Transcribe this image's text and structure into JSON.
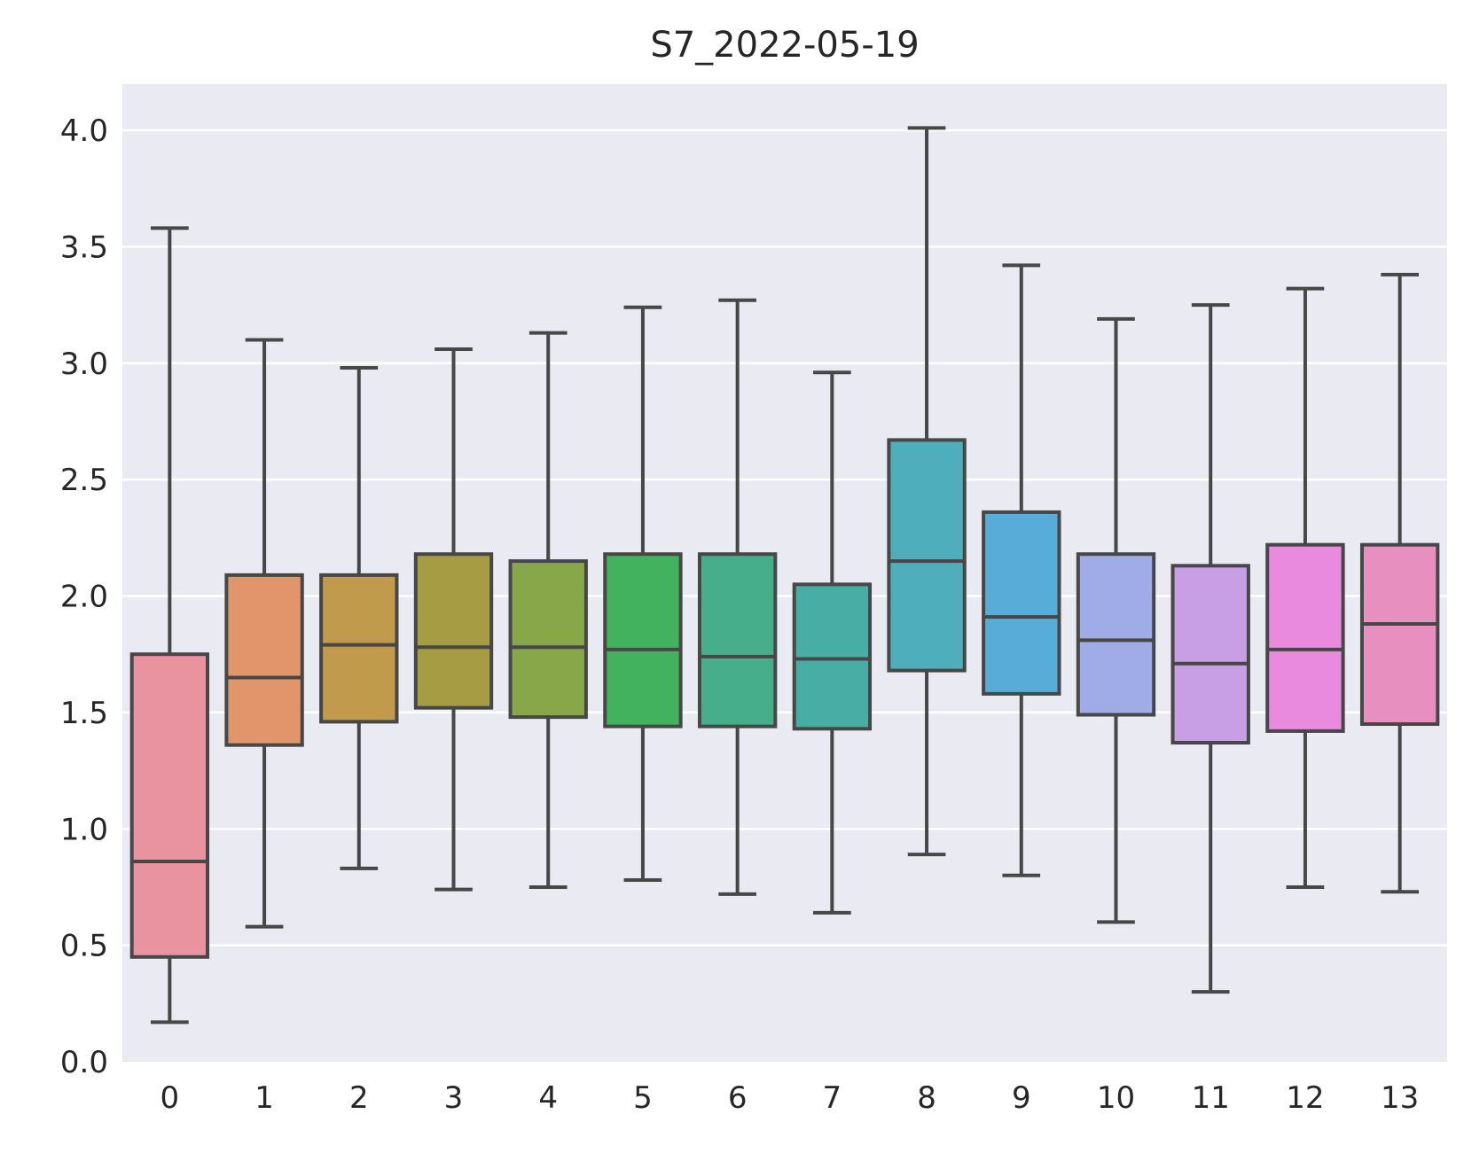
{
  "chart_data": {
    "type": "boxplot",
    "title": "S7_2022-05-19",
    "xlabel": "",
    "ylabel": "",
    "ylim": [
      0.0,
      4.2
    ],
    "yticks": [
      "0.0",
      "0.5",
      "1.0",
      "1.5",
      "2.0",
      "2.5",
      "3.0",
      "3.5",
      "4.0"
    ],
    "grid": true,
    "categories": [
      "0",
      "1",
      "2",
      "3",
      "4",
      "5",
      "6",
      "7",
      "8",
      "9",
      "10",
      "11",
      "12",
      "13"
    ],
    "boxes": [
      {
        "category": "0",
        "whislo": 0.17,
        "q1": 0.45,
        "med": 0.86,
        "q3": 1.75,
        "whishi": 3.58,
        "color": "#e8939f"
      },
      {
        "category": "1",
        "whislo": 0.58,
        "q1": 1.36,
        "med": 1.65,
        "q3": 2.09,
        "whishi": 3.1,
        "color": "#e2946b"
      },
      {
        "category": "2",
        "whislo": 0.83,
        "q1": 1.46,
        "med": 1.79,
        "q3": 2.09,
        "whishi": 2.98,
        "color": "#c19b4b"
      },
      {
        "category": "3",
        "whislo": 0.74,
        "q1": 1.52,
        "med": 1.78,
        "q3": 2.18,
        "whishi": 3.06,
        "color": "#a59c43"
      },
      {
        "category": "4",
        "whislo": 0.75,
        "q1": 1.48,
        "med": 1.78,
        "q3": 2.15,
        "whishi": 3.13,
        "color": "#88a748"
      },
      {
        "category": "5",
        "whislo": 0.78,
        "q1": 1.44,
        "med": 1.77,
        "q3": 2.18,
        "whishi": 3.24,
        "color": "#43b25e"
      },
      {
        "category": "6",
        "whislo": 0.72,
        "q1": 1.44,
        "med": 1.74,
        "q3": 2.18,
        "whishi": 3.27,
        "color": "#46ae8a"
      },
      {
        "category": "7",
        "whislo": 0.64,
        "q1": 1.43,
        "med": 1.73,
        "q3": 2.05,
        "whishi": 2.96,
        "color": "#48ada5"
      },
      {
        "category": "8",
        "whislo": 0.89,
        "q1": 1.68,
        "med": 2.15,
        "q3": 2.67,
        "whishi": 4.01,
        "color": "#4eaebc"
      },
      {
        "category": "9",
        "whislo": 0.8,
        "q1": 1.58,
        "med": 1.91,
        "q3": 2.36,
        "whishi": 3.42,
        "color": "#58acd8"
      },
      {
        "category": "10",
        "whislo": 0.6,
        "q1": 1.49,
        "med": 1.81,
        "q3": 2.18,
        "whishi": 3.19,
        "color": "#a0ace8"
      },
      {
        "category": "11",
        "whislo": 0.3,
        "q1": 1.37,
        "med": 1.71,
        "q3": 2.13,
        "whishi": 3.25,
        "color": "#c89ee4"
      },
      {
        "category": "12",
        "whislo": 0.75,
        "q1": 1.42,
        "med": 1.77,
        "q3": 2.22,
        "whishi": 3.32,
        "color": "#e98adf"
      },
      {
        "category": "13",
        "whislo": 0.73,
        "q1": 1.45,
        "med": 1.88,
        "q3": 2.22,
        "whishi": 3.38,
        "color": "#e78fbe"
      }
    ],
    "colors": {
      "plot_background": "#eaeaf2",
      "grid": "#ffffff",
      "box_edge": "#474747",
      "text": "#262626"
    }
  }
}
